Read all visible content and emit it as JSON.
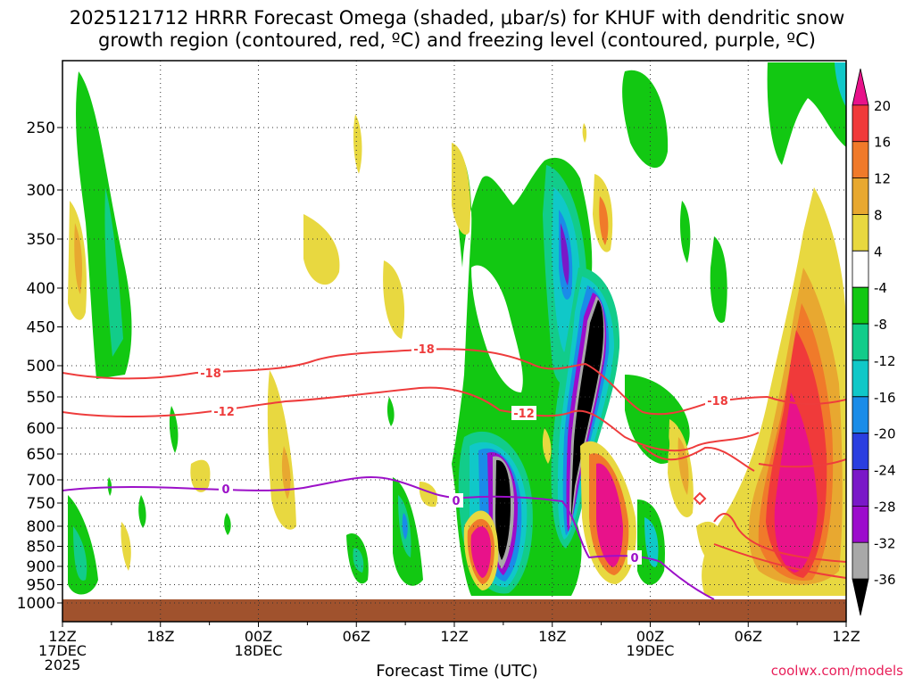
{
  "title_line1": "2025121712 HRRR Forecast Omega (shaded, μbar/s) for KHUF with dendritic snow",
  "title_line2": "growth region (contoured, red, ºC) and freezing level (contoured, purple, ºC)",
  "credit": "coolwx.com/models",
  "chart_data": {
    "type": "time-height cross section",
    "title": "2025121712 HRRR Forecast Omega (shaded, μbar/s) for KHUF with dendritic snow growth region (contoured, red, ºC) and freezing level (contoured, purple, ºC)",
    "xlabel": "Forecast Time (UTC)",
    "ylabel": "",
    "x_ticks": [
      {
        "label": "12Z",
        "sub1": "17DEC",
        "sub2": "2025",
        "hour": 0
      },
      {
        "label": "18Z",
        "sub1": "",
        "sub2": "",
        "hour": 6
      },
      {
        "label": "00Z",
        "sub1": "18DEC",
        "sub2": "",
        "hour": 12
      },
      {
        "label": "06Z",
        "sub1": "",
        "sub2": "",
        "hour": 18
      },
      {
        "label": "12Z",
        "sub1": "",
        "sub2": "",
        "hour": 24
      },
      {
        "label": "18Z",
        "sub1": "",
        "sub2": "",
        "hour": 30
      },
      {
        "label": "00Z",
        "sub1": "19DEC",
        "sub2": "",
        "hour": 36
      },
      {
        "label": "06Z",
        "sub1": "",
        "sub2": "",
        "hour": 42
      },
      {
        "label": "12Z",
        "sub1": "",
        "sub2": "",
        "hour": 48
      }
    ],
    "y_ticks": [
      250,
      300,
      350,
      400,
      450,
      500,
      550,
      600,
      650,
      700,
      750,
      800,
      850,
      900,
      950,
      1000
    ],
    "y_range_hpa": [
      200,
      1025
    ],
    "x_range_hours": [
      0,
      48
    ],
    "colorbar": {
      "labels": [
        "20",
        "16",
        "12",
        "8",
        "4",
        "-4",
        "-8",
        "-12",
        "-16",
        "-20",
        "-24",
        "-28",
        "-32",
        "-36"
      ],
      "colors": [
        "#e8128a",
        "#f03a3a",
        "#f07a2a",
        "#e8a830",
        "#e8d840",
        "#ffffff",
        "#12c812",
        "#12cc8a",
        "#10c8c8",
        "#1a8ce8",
        "#2a3ee0",
        "#7a18c8",
        "#9c0ccc",
        "#a8a8a8",
        "#000000"
      ]
    },
    "contours": {
      "temp_labels": [
        "-18",
        "-12",
        "-18",
        "-12",
        "-18"
      ],
      "freezing_labels": [
        "0",
        "0",
        "0"
      ]
    }
  }
}
